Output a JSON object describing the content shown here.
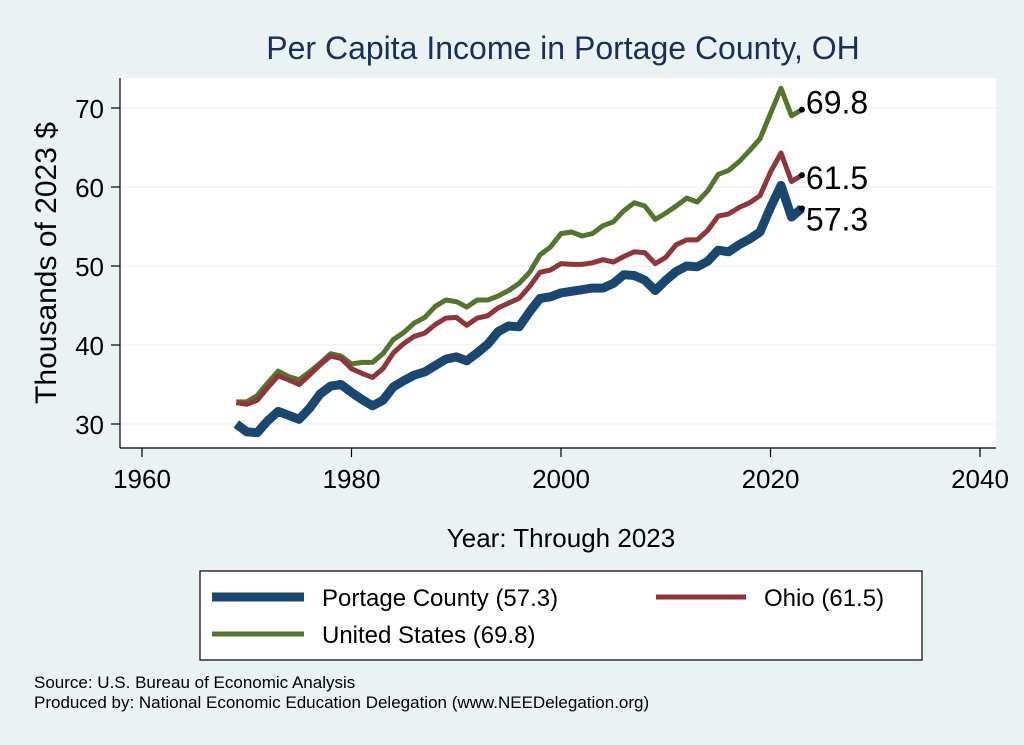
{
  "chart_data": {
    "type": "line",
    "title": "Per Capita Income in Portage County, OH",
    "xlabel": "Year: Through 2023",
    "ylabel": "Thousands of 2023 $",
    "xlim": [
      1960,
      2040
    ],
    "ylim": [
      28,
      74
    ],
    "xticks": [
      "1960",
      "1980",
      "2000",
      "2020",
      "2040"
    ],
    "yticks": [
      "30",
      "40",
      "50",
      "60",
      "70"
    ],
    "grid": true,
    "legend_position": "bottom",
    "x": [
      1969,
      1970,
      1971,
      1972,
      1973,
      1974,
      1975,
      1976,
      1977,
      1978,
      1979,
      1980,
      1981,
      1982,
      1983,
      1984,
      1985,
      1986,
      1987,
      1988,
      1989,
      1990,
      1991,
      1992,
      1993,
      1994,
      1995,
      1996,
      1997,
      1998,
      1999,
      2000,
      2001,
      2002,
      2003,
      2004,
      2005,
      2006,
      2007,
      2008,
      2009,
      2010,
      2011,
      2012,
      2013,
      2014,
      2015,
      2016,
      2017,
      2018,
      2019,
      2020,
      2021,
      2022,
      2023
    ],
    "series": [
      {
        "name": "Portage County (57.3)",
        "color": "#1a476f",
        "end_label": "57.3",
        "values": [
          30.0,
          29.0,
          28.9,
          30.4,
          31.6,
          31.1,
          30.6,
          32.0,
          33.8,
          34.8,
          35.0,
          34.0,
          33.1,
          32.3,
          33.0,
          34.7,
          35.5,
          36.2,
          36.6,
          37.4,
          38.2,
          38.5,
          38.0,
          39.0,
          40.1,
          41.7,
          42.4,
          42.3,
          44.2,
          45.9,
          46.1,
          46.6,
          46.8,
          47.0,
          47.2,
          47.2,
          47.8,
          48.9,
          48.8,
          48.2,
          46.9,
          48.2,
          49.3,
          50.0,
          49.9,
          50.6,
          52.0,
          51.8,
          52.7,
          53.4,
          54.3,
          57.4,
          60.2,
          56.2,
          57.3
        ]
      },
      {
        "name": "Ohio (61.5)",
        "color": "#90353b",
        "end_label": "61.5",
        "values": [
          32.7,
          32.5,
          33.0,
          34.6,
          36.1,
          35.6,
          35.0,
          36.2,
          37.5,
          38.6,
          38.3,
          37.0,
          36.4,
          35.9,
          37.0,
          39.0,
          40.2,
          41.1,
          41.5,
          42.6,
          43.4,
          43.5,
          42.5,
          43.4,
          43.7,
          44.7,
          45.3,
          45.9,
          47.4,
          49.2,
          49.5,
          50.3,
          50.2,
          50.2,
          50.4,
          50.8,
          50.5,
          51.2,
          51.8,
          51.7,
          50.3,
          51.1,
          52.7,
          53.3,
          53.3,
          54.5,
          56.3,
          56.6,
          57.4,
          58.0,
          58.9,
          61.9,
          64.3,
          60.7,
          61.5
        ]
      },
      {
        "name": "United States (69.8)",
        "color": "#55752f",
        "end_label": "69.8",
        "values": [
          32.8,
          32.8,
          33.6,
          35.2,
          36.7,
          36.0,
          35.6,
          36.6,
          37.7,
          38.9,
          38.6,
          37.6,
          37.8,
          37.8,
          38.9,
          40.7,
          41.6,
          42.8,
          43.5,
          44.9,
          45.7,
          45.5,
          44.8,
          45.7,
          45.7,
          46.2,
          46.9,
          47.8,
          49.2,
          51.4,
          52.4,
          54.1,
          54.3,
          53.8,
          54.1,
          55.1,
          55.6,
          57.0,
          58.0,
          57.6,
          55.9,
          56.7,
          57.6,
          58.6,
          58.1,
          59.5,
          61.6,
          62.1,
          63.2,
          64.6,
          66.1,
          69.3,
          72.5,
          69.0,
          69.8
        ]
      }
    ],
    "legend": {
      "entries": [
        {
          "label": "Portage County (57.3)",
          "color": "#1a476f"
        },
        {
          "label": "Ohio (61.5)",
          "color": "#90353b"
        },
        {
          "label": "United States (69.8)",
          "color": "#55752f"
        }
      ]
    }
  },
  "notes": {
    "source": "Source: U.S. Bureau of Economic Analysis",
    "produced_by": "Produced by: National Economic Education Delegation (www.NEEDelegation.org)"
  }
}
